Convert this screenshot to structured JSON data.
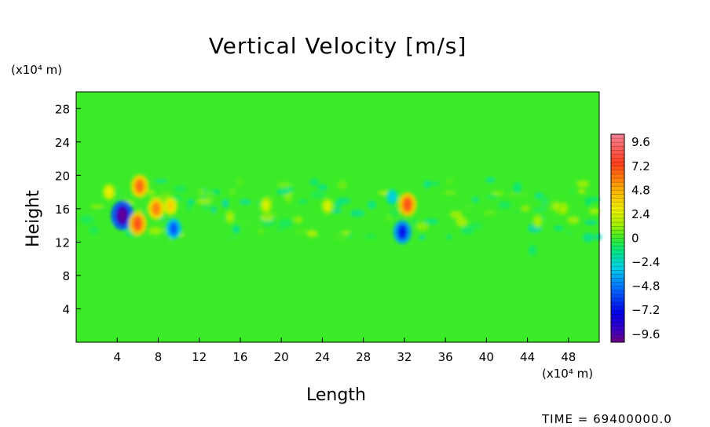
{
  "chart_data": {
    "type": "heatmap",
    "title": "Vertical Velocity [m/s]",
    "xlabel": "Length",
    "ylabel": "Height",
    "x_unit": "(x10⁴ m)",
    "y_unit": "(x10⁴ m)",
    "x_ticks": [
      "4",
      "8",
      "12",
      "16",
      "20",
      "24",
      "28",
      "32",
      "36",
      "40",
      "44",
      "48"
    ],
    "y_ticks": [
      "4",
      "8",
      "12",
      "16",
      "20",
      "24",
      "28"
    ],
    "xlim": [
      0,
      51
    ],
    "ylim": [
      0,
      30
    ],
    "colorbar": {
      "min": -10.4,
      "max": 10.4,
      "labels": [
        "9.6",
        "7.2",
        "4.8",
        "2.4",
        "0",
        "−2.4",
        "−4.8",
        "−7.2",
        "−9.6"
      ],
      "label_values": [
        9.6,
        7.2,
        4.8,
        2.4,
        0,
        -2.4,
        -4.8,
        -7.2,
        -9.6
      ]
    },
    "background_value": 0,
    "features": [
      {
        "x": 4.5,
        "y": 15.2,
        "value": -10.0
      },
      {
        "x": 6.2,
        "y": 18.7,
        "value": 6.5
      },
      {
        "x": 6.0,
        "y": 14.2,
        "value": 7.0
      },
      {
        "x": 7.8,
        "y": 16.0,
        "value": 6.0
      },
      {
        "x": 9.2,
        "y": 16.3,
        "value": 4.0
      },
      {
        "x": 9.5,
        "y": 13.6,
        "value": -5.5
      },
      {
        "x": 3.2,
        "y": 18.0,
        "value": 3.0
      },
      {
        "x": 32.3,
        "y": 16.5,
        "value": 7.0
      },
      {
        "x": 31.8,
        "y": 13.2,
        "value": -7.0
      },
      {
        "x": 30.8,
        "y": 17.4,
        "value": -3.0
      },
      {
        "x": 18.5,
        "y": 16.4,
        "value": 2.5
      },
      {
        "x": 24.5,
        "y": 16.3,
        "value": 2.5
      },
      {
        "x": 15.0,
        "y": 15.0,
        "value": 1.5
      },
      {
        "x": 45.0,
        "y": 14.5,
        "value": 1.5
      },
      {
        "x": 47.5,
        "y": 16.0,
        "value": 1.5
      },
      {
        "x": 44.5,
        "y": 11.0,
        "value": -1.0
      },
      {
        "x": 43.0,
        "y": 18.5,
        "value": -1.2
      }
    ]
  },
  "footer": {
    "time_label": "TIME = 69400000.0"
  }
}
